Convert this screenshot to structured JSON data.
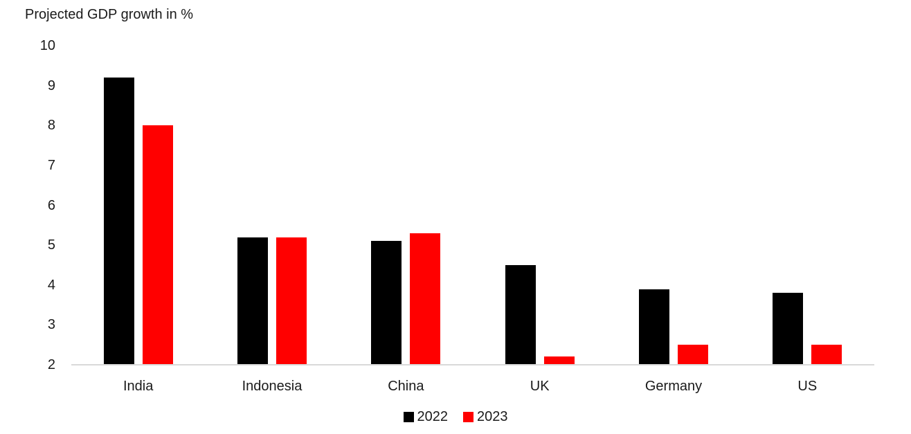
{
  "chart_data": {
    "type": "bar",
    "title": "Projected GDP growth in %",
    "categories": [
      "India",
      "Indonesia",
      "China",
      "UK",
      "Germany",
      "US"
    ],
    "series": [
      {
        "name": "2022",
        "color": "#000000",
        "values": [
          9.2,
          5.2,
          5.1,
          4.5,
          3.9,
          3.8
        ]
      },
      {
        "name": "2023",
        "color": "#ff0000",
        "values": [
          8.0,
          5.2,
          5.3,
          2.2,
          2.5,
          2.5
        ]
      }
    ],
    "ylim": [
      2,
      10
    ],
    "yticks": [
      10,
      9,
      8,
      7,
      6,
      5,
      4,
      3,
      2
    ],
    "xlabel": "",
    "ylabel": "",
    "grid": false,
    "legend_position": "bottom",
    "axis_line_color": "#d9d9d9",
    "text_color": "#1a1a1a",
    "background_color": "#ffffff"
  }
}
